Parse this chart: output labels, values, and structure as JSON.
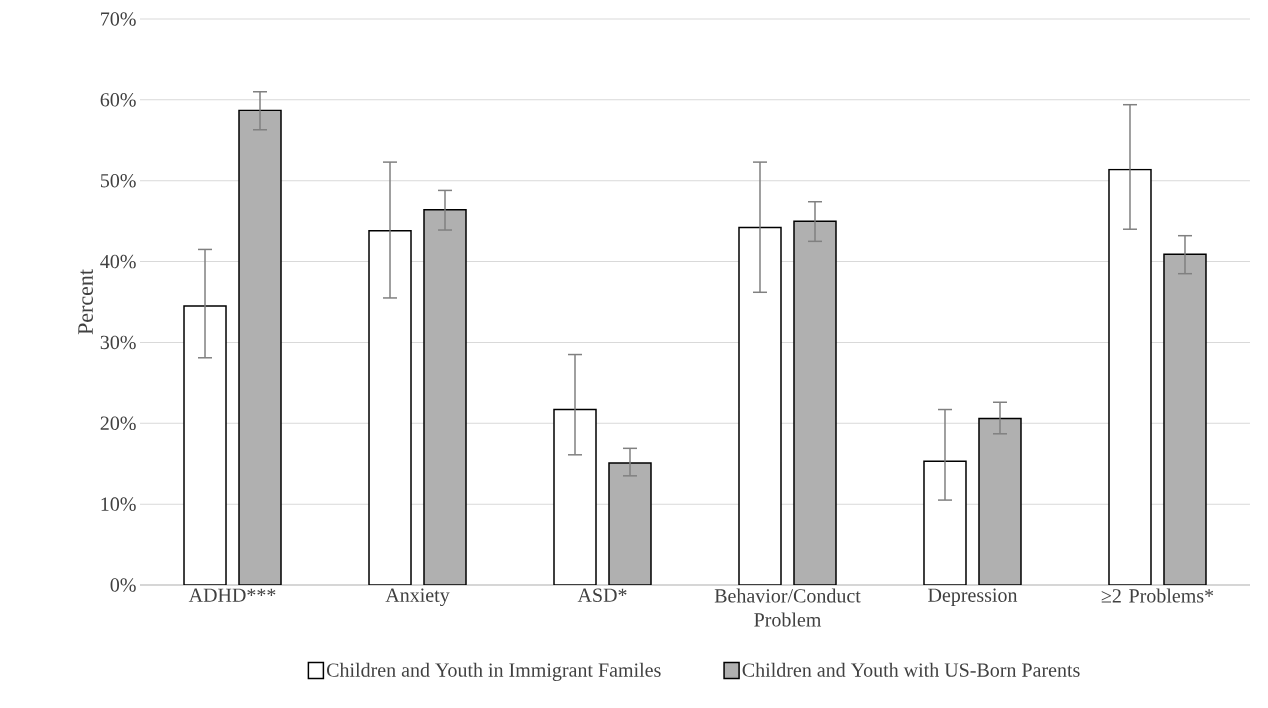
{
  "chart_data": {
    "type": "bar",
    "ylabel": "Percent",
    "categories": [
      "ADHD***",
      "Anxiety",
      "ASD*",
      "Behavior/Conduct Problem",
      "Depression",
      "≥2 Problems*"
    ],
    "series": [
      {
        "name": "Children and Youth in Immigrant Familes",
        "color": "#ffffff",
        "values": [
          34.5,
          43.8,
          21.7,
          44.2,
          15.3,
          51.4
        ],
        "errors": [
          [
            28.1,
            41.5
          ],
          [
            35.5,
            52.3
          ],
          [
            16.1,
            28.5
          ],
          [
            36.2,
            52.3
          ],
          [
            10.5,
            21.7
          ],
          [
            44.0,
            59.4
          ]
        ]
      },
      {
        "name": "Children and Youth with US-Born Parents",
        "color": "#b0b0b0",
        "values": [
          58.7,
          46.4,
          15.1,
          45.0,
          20.6,
          40.9
        ],
        "errors": [
          [
            56.3,
            61.0
          ],
          [
            43.9,
            48.8
          ],
          [
            13.5,
            16.9
          ],
          [
            42.5,
            47.4
          ],
          [
            18.7,
            22.6
          ],
          [
            38.5,
            43.2
          ]
        ]
      }
    ],
    "ylim": [
      0,
      70
    ],
    "yticks": [
      {
        "value": 0,
        "label": "0%"
      },
      {
        "value": 10,
        "label": "10%"
      },
      {
        "value": 20,
        "label": "20%"
      },
      {
        "value": 30,
        "label": "30%"
      },
      {
        "value": 40,
        "label": "40%"
      },
      {
        "value": 50,
        "label": "50%"
      },
      {
        "value": 60,
        "label": "60%"
      },
      {
        "value": 70,
        "label": "70%"
      }
    ],
    "grid": "y",
    "legend": "bottom"
  }
}
